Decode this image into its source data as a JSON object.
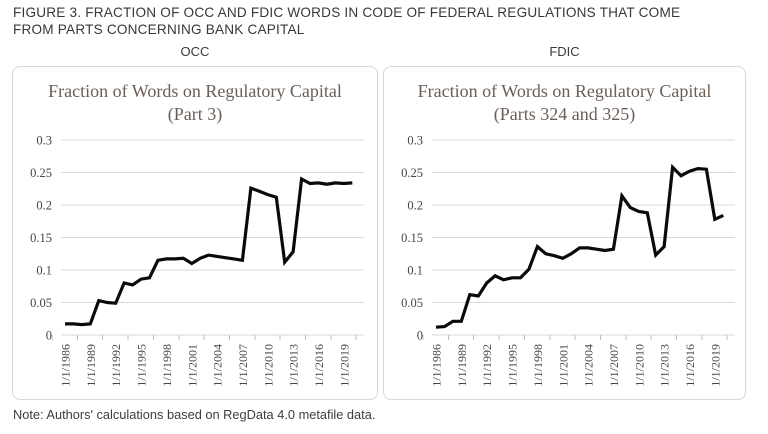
{
  "figure": {
    "title_line1": "FIGURE 3. FRACTION OF OCC AND FDIC WORDS IN CODE OF FEDERAL REGULATIONS THAT COME",
    "title_line2": "FROM PARTS CONCERNING BANK CAPITAL"
  },
  "note": "Note: Authors' calculations based on RegData 4.0 metafile data.",
  "colors": {
    "line": "#0a0a0a",
    "grid": "#d9d9d9",
    "tick_mark": "#bfbfbf",
    "axis_text": "#4a4442",
    "chart_title_text": "#6b5e57",
    "panel_border": "#d8d8d8"
  },
  "chart_data": [
    {
      "type": "line",
      "panel_label": "OCC",
      "title": "Fraction of Words on Regulatory Capital (Part 3)",
      "xlabel": "",
      "ylabel": "",
      "ylim": [
        0,
        0.3
      ],
      "grid": true,
      "legend": "none",
      "yticks": [
        0,
        0.05,
        0.1,
        0.15,
        0.2,
        0.25,
        0.3
      ],
      "ytick_labels": [
        "0",
        "0.05",
        "0.1",
        "0.15",
        "0.2",
        "0.25",
        "0.3"
      ],
      "xticks": [
        {
          "year": 1986,
          "label": "1/1/1986"
        },
        {
          "year": 1989,
          "label": "1/1/1989"
        },
        {
          "year": 1992,
          "label": "1/1/1992"
        },
        {
          "year": 1995,
          "label": "1/1/1995"
        },
        {
          "year": 1998,
          "label": "1/1/1998"
        },
        {
          "year": 2001,
          "label": "1/1/2001"
        },
        {
          "year": 2004,
          "label": "1/1/2004"
        },
        {
          "year": 2007,
          "label": "1/1/2007"
        },
        {
          "year": 2010,
          "label": "1/1/2010"
        },
        {
          "year": 2013,
          "label": "1/1/2013"
        },
        {
          "year": 2016,
          "label": "1/1/2016"
        },
        {
          "year": 2019,
          "label": "1/1/2019"
        }
      ],
      "x": [
        1986,
        1987,
        1988,
        1989,
        1990,
        1991,
        1992,
        1993,
        1994,
        1995,
        1996,
        1997,
        1998,
        1999,
        2000,
        2001,
        2002,
        2003,
        2004,
        2005,
        2006,
        2007,
        2008,
        2009,
        2010,
        2011,
        2012,
        2013,
        2014,
        2015,
        2016,
        2017,
        2018,
        2019,
        2020
      ],
      "values": [
        0.017,
        0.017,
        0.016,
        0.017,
        0.053,
        0.05,
        0.049,
        0.08,
        0.077,
        0.086,
        0.088,
        0.115,
        0.117,
        0.117,
        0.118,
        0.11,
        0.118,
        0.123,
        0.121,
        0.119,
        0.117,
        0.115,
        0.226,
        0.221,
        0.216,
        0.212,
        0.112,
        0.128,
        0.24,
        0.233,
        0.234,
        0.232,
        0.234,
        0.233,
        0.234
      ]
    },
    {
      "type": "line",
      "panel_label": "FDIC",
      "title": "Fraction of Words on Regulatory Capital (Parts 324 and 325)",
      "xlabel": "",
      "ylabel": "",
      "ylim": [
        0,
        0.3
      ],
      "grid": true,
      "legend": "none",
      "yticks": [
        0,
        0.05,
        0.1,
        0.15,
        0.2,
        0.25,
        0.3
      ],
      "ytick_labels": [
        "0",
        "0.05",
        "0.1",
        "0.15",
        "0.2",
        "0.25",
        "0.3"
      ],
      "xticks": [
        {
          "year": 1986,
          "label": "1/1/1986"
        },
        {
          "year": 1989,
          "label": "1/1/1989"
        },
        {
          "year": 1992,
          "label": "1/1/1992"
        },
        {
          "year": 1995,
          "label": "1/1/1995"
        },
        {
          "year": 1998,
          "label": "1/1/1998"
        },
        {
          "year": 2001,
          "label": "1/1/2001"
        },
        {
          "year": 2004,
          "label": "1/1/2004"
        },
        {
          "year": 2007,
          "label": "1/1/2007"
        },
        {
          "year": 2010,
          "label": "1/1/2010"
        },
        {
          "year": 2013,
          "label": "1/1/2013"
        },
        {
          "year": 2016,
          "label": "1/1/2016"
        },
        {
          "year": 2019,
          "label": "1/1/2019"
        }
      ],
      "x": [
        1986,
        1987,
        1988,
        1989,
        1990,
        1991,
        1992,
        1993,
        1994,
        1995,
        1996,
        1997,
        1998,
        1999,
        2000,
        2001,
        2002,
        2003,
        2004,
        2005,
        2006,
        2007,
        2008,
        2009,
        2010,
        2011,
        2012,
        2013,
        2014,
        2015,
        2016,
        2017,
        2018,
        2019,
        2020
      ],
      "values": [
        0.012,
        0.013,
        0.021,
        0.021,
        0.062,
        0.06,
        0.08,
        0.091,
        0.085,
        0.088,
        0.088,
        0.101,
        0.136,
        0.125,
        0.122,
        0.118,
        0.125,
        0.134,
        0.134,
        0.132,
        0.13,
        0.132,
        0.214,
        0.196,
        0.19,
        0.188,
        0.123,
        0.136,
        0.258,
        0.245,
        0.252,
        0.256,
        0.255,
        0.178,
        0.184
      ]
    }
  ]
}
